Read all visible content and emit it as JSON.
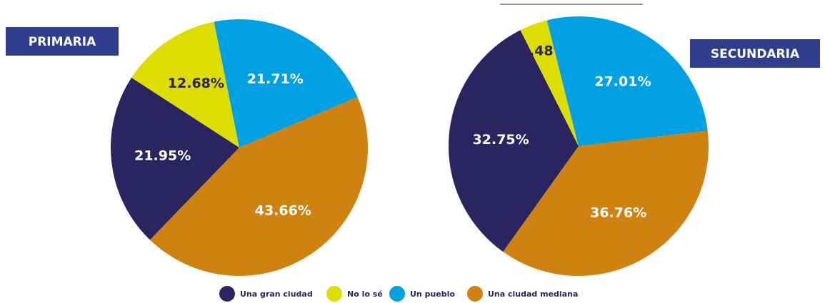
{
  "legend": {
    "labels": [
      "Una gran ciudad",
      "No lo sé",
      "Un pueblo",
      "Una ciudad mediana"
    ],
    "colors": [
      "#2a2460",
      "#dedd00",
      "#00a0e3",
      "#cf8210"
    ]
  },
  "chart_data": [
    {
      "type": "pie",
      "title": "PRIMARIA",
      "values": [
        21.95,
        12.68,
        21.71,
        43.66
      ],
      "value_labels": [
        "21.95%",
        "12.68%",
        "21.71%",
        "43.66%"
      ]
    },
    {
      "type": "pie",
      "title": "SECUNDARIA",
      "values": [
        32.75,
        3.48,
        27.01,
        36.76
      ],
      "value_labels": [
        "32.75%",
        "3.48%",
        "27.01%",
        "36.76%"
      ]
    }
  ]
}
